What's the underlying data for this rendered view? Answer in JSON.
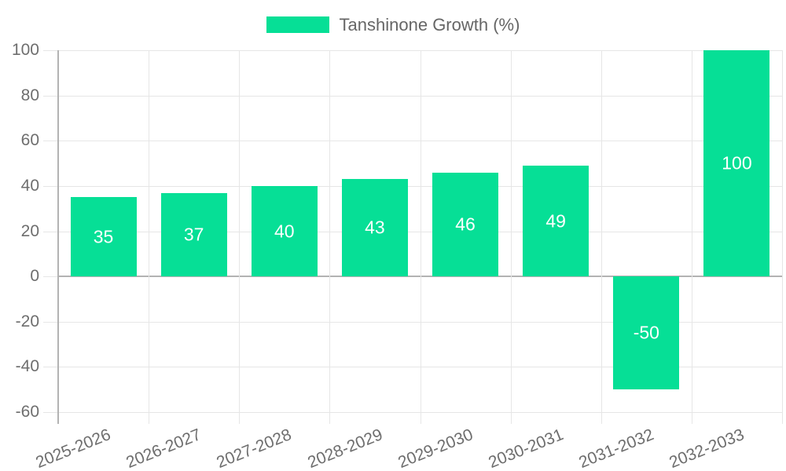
{
  "chart_data": {
    "type": "bar",
    "title": "",
    "legend_label": "Tanshinone Growth (%)",
    "categories": [
      "2025-2026",
      "2026-2027",
      "2027-2028",
      "2028-2029",
      "2029-2030",
      "2030-2031",
      "2031-2032",
      "2032-2033"
    ],
    "values": [
      35,
      37,
      40,
      43,
      46,
      49,
      -50,
      100
    ],
    "value_labels": [
      "35",
      "37",
      "40",
      "43",
      "46",
      "49",
      "-50",
      "100"
    ],
    "yticks": [
      100,
      80,
      60,
      40,
      20,
      0,
      -20,
      -40,
      -60
    ],
    "ylim": [
      -60,
      100
    ],
    "xlabel": "",
    "ylabel": "",
    "grid": true,
    "legend_position": "top",
    "colors": {
      "bar": "#06df96",
      "value_label": "#ffffff",
      "axis_label": "#6e6e6e",
      "legend_text": "#666666",
      "grid_light": "#e6e6e6",
      "grid_dark": "#b3b3b3",
      "background": "#ffffff"
    }
  }
}
